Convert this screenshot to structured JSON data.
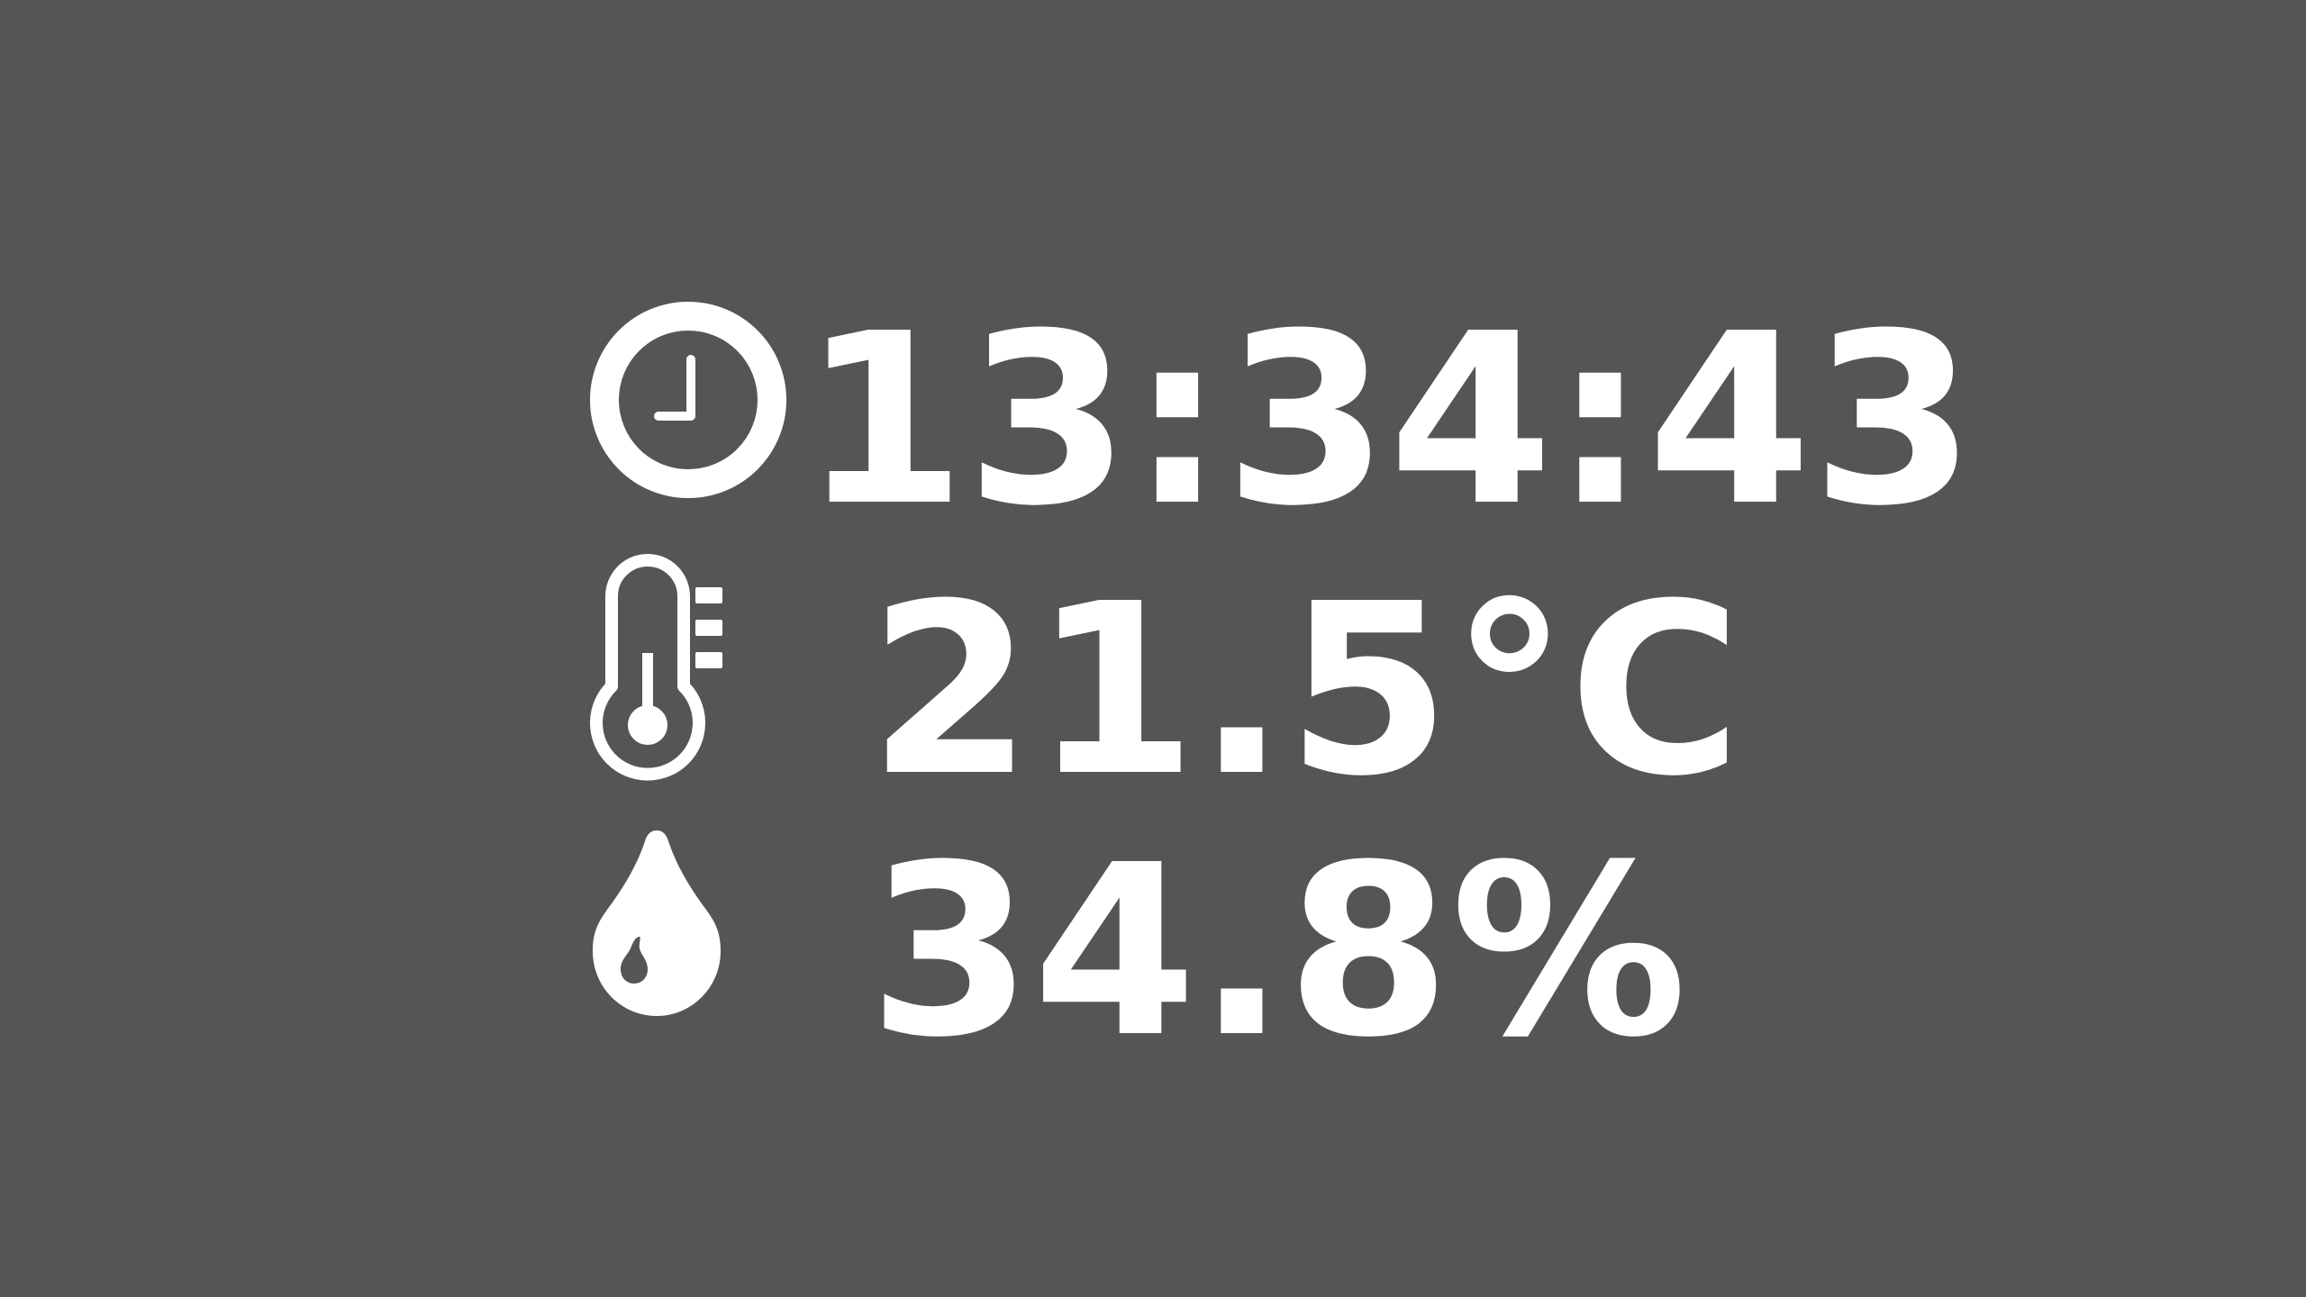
{
  "colors": {
    "background": "#555555",
    "foreground": "#ffffff"
  },
  "icons": {
    "time": "clock-icon",
    "temperature": "thermometer-icon",
    "humidity": "water-drop-icon"
  },
  "readings": {
    "time": "13:34:43",
    "temperature": "21.5°C",
    "humidity": "34.8%"
  }
}
